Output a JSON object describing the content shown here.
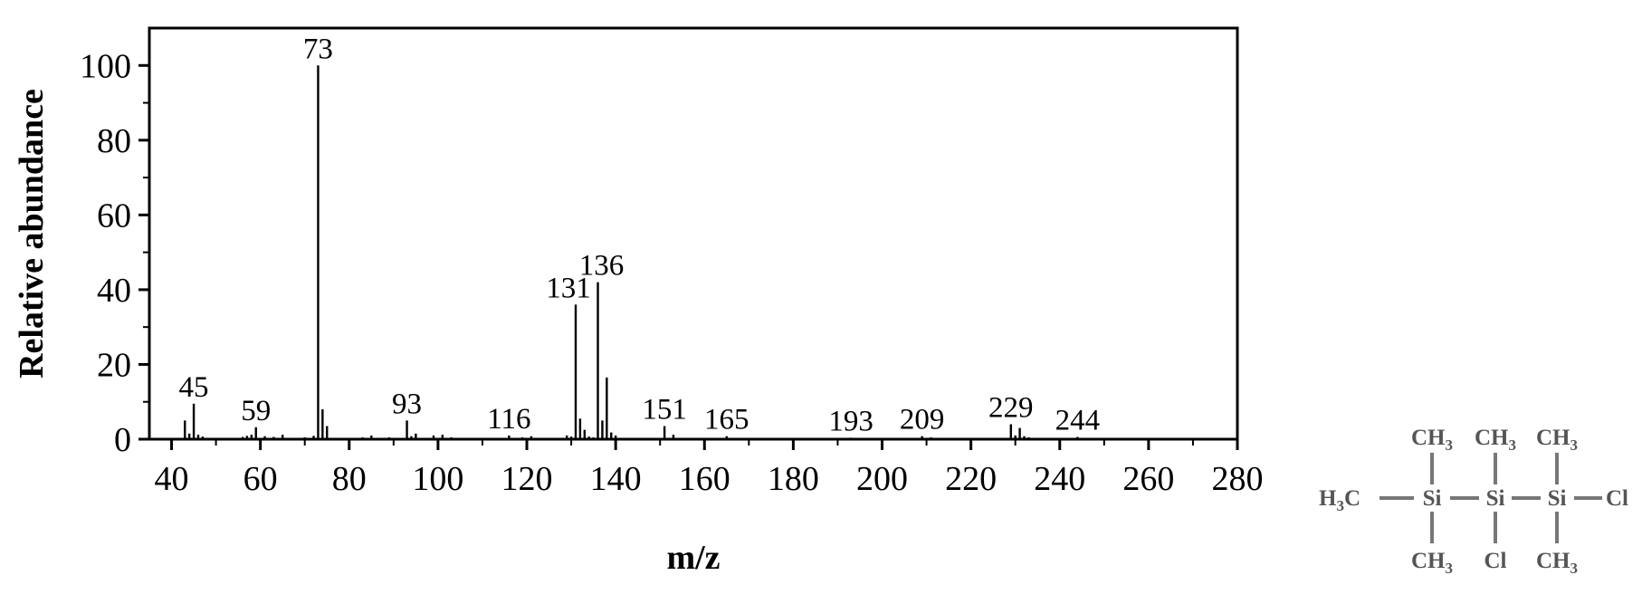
{
  "chart_data": {
    "type": "bar",
    "xlabel": "m/z",
    "ylabel": "Relative abundance",
    "xlim": [
      35,
      280
    ],
    "ylim": [
      0,
      110
    ],
    "x_ticks": [
      40,
      60,
      80,
      100,
      120,
      140,
      160,
      180,
      200,
      220,
      240,
      260,
      280
    ],
    "y_ticks": [
      0,
      20,
      40,
      60,
      80,
      100
    ],
    "grid": false,
    "peaks": [
      {
        "mz": 43,
        "abundance": 5
      },
      {
        "mz": 44,
        "abundance": 1.5
      },
      {
        "mz": 45,
        "abundance": 9.5
      },
      {
        "mz": 46,
        "abundance": 1.2
      },
      {
        "mz": 47,
        "abundance": 0.7
      },
      {
        "mz": 56,
        "abundance": 0.6
      },
      {
        "mz": 57,
        "abundance": 0.9
      },
      {
        "mz": 58,
        "abundance": 1.2
      },
      {
        "mz": 59,
        "abundance": 3.2
      },
      {
        "mz": 61,
        "abundance": 0.8
      },
      {
        "mz": 63,
        "abundance": 0.6
      },
      {
        "mz": 65,
        "abundance": 1.2
      },
      {
        "mz": 70,
        "abundance": 0.5
      },
      {
        "mz": 72,
        "abundance": 0.9
      },
      {
        "mz": 73,
        "abundance": 100
      },
      {
        "mz": 74,
        "abundance": 8
      },
      {
        "mz": 75,
        "abundance": 3.5
      },
      {
        "mz": 83,
        "abundance": 0.5
      },
      {
        "mz": 85,
        "abundance": 1.0
      },
      {
        "mz": 89,
        "abundance": 0.5
      },
      {
        "mz": 93,
        "abundance": 5
      },
      {
        "mz": 94,
        "abundance": 0.8
      },
      {
        "mz": 95,
        "abundance": 1.5
      },
      {
        "mz": 99,
        "abundance": 1.0
      },
      {
        "mz": 101,
        "abundance": 1.2
      },
      {
        "mz": 103,
        "abundance": 0.5
      },
      {
        "mz": 116,
        "abundance": 1.0
      },
      {
        "mz": 119,
        "abundance": 0.5
      },
      {
        "mz": 121,
        "abundance": 0.8
      },
      {
        "mz": 129,
        "abundance": 1.0
      },
      {
        "mz": 130,
        "abundance": 0.7
      },
      {
        "mz": 131,
        "abundance": 36
      },
      {
        "mz": 132,
        "abundance": 5.5
      },
      {
        "mz": 133,
        "abundance": 2.5
      },
      {
        "mz": 134,
        "abundance": 0.7
      },
      {
        "mz": 135,
        "abundance": 0.5
      },
      {
        "mz": 136,
        "abundance": 42
      },
      {
        "mz": 137,
        "abundance": 5
      },
      {
        "mz": 138,
        "abundance": 16.5
      },
      {
        "mz": 139,
        "abundance": 1.8
      },
      {
        "mz": 140,
        "abundance": 1.0
      },
      {
        "mz": 151,
        "abundance": 3.5
      },
      {
        "mz": 153,
        "abundance": 1.2
      },
      {
        "mz": 165,
        "abundance": 0.8
      },
      {
        "mz": 193,
        "abundance": 0.4
      },
      {
        "mz": 209,
        "abundance": 0.8
      },
      {
        "mz": 211,
        "abundance": 0.5
      },
      {
        "mz": 229,
        "abundance": 4
      },
      {
        "mz": 230,
        "abundance": 1.0
      },
      {
        "mz": 231,
        "abundance": 3
      },
      {
        "mz": 232,
        "abundance": 0.8
      },
      {
        "mz": 233,
        "abundance": 0.5
      },
      {
        "mz": 244,
        "abundance": 0.6
      }
    ],
    "annotations": [
      {
        "text": "45",
        "mz": 45,
        "abundance": 9.5
      },
      {
        "text": "59",
        "mz": 59,
        "abundance": 3.2
      },
      {
        "text": "73",
        "mz": 73,
        "abundance": 100
      },
      {
        "text": "93",
        "mz": 93,
        "abundance": 5
      },
      {
        "text": "116",
        "mz": 116,
        "abundance": 1.0
      },
      {
        "text": "131",
        "mz": 131,
        "abundance": 36
      },
      {
        "text": "136",
        "mz": 136,
        "abundance": 42
      },
      {
        "text": "151",
        "mz": 151,
        "abundance": 3.5
      },
      {
        "text": "165",
        "mz": 165,
        "abundance": 0.8
      },
      {
        "text": "193",
        "mz": 193,
        "abundance": 0.4
      },
      {
        "text": "209",
        "mz": 209,
        "abundance": 0.8
      },
      {
        "text": "229",
        "mz": 229,
        "abundance": 4
      },
      {
        "text": "244",
        "mz": 244,
        "abundance": 0.6
      }
    ]
  },
  "structure": {
    "top_groups": [
      "CH3",
      "CH3",
      "CH3"
    ],
    "bottom_groups": [
      "CH3",
      "Cl",
      "CH3"
    ],
    "left_group": "H3C",
    "right_group": "Cl",
    "backbone": [
      "Si",
      "Si",
      "Si"
    ]
  }
}
